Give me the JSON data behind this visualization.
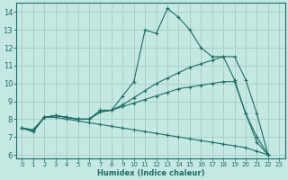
{
  "xlabel": "Humidex (Indice chaleur)",
  "ylabel": "",
  "bg_color": "#c6e8e2",
  "grid_color": "#a8d0c8",
  "line_color": "#1a6e68",
  "xlim": [
    -0.5,
    23.5
  ],
  "ylim": [
    5.8,
    14.5
  ],
  "yticks": [
    6,
    7,
    8,
    9,
    10,
    11,
    12,
    13,
    14
  ],
  "xticks": [
    0,
    1,
    2,
    3,
    4,
    5,
    6,
    7,
    8,
    9,
    10,
    11,
    12,
    13,
    14,
    15,
    16,
    17,
    18,
    19,
    20,
    21,
    22,
    23
  ],
  "lines": [
    {
      "x": [
        0,
        1,
        2,
        3,
        4,
        5,
        6,
        7,
        8,
        9,
        10,
        11,
        12,
        13,
        14,
        15,
        16,
        17,
        18,
        19,
        20,
        21,
        22
      ],
      "y": [
        7.5,
        7.3,
        8.1,
        8.2,
        8.1,
        8.0,
        8.0,
        8.5,
        8.5,
        9.3,
        10.1,
        13.0,
        12.8,
        14.2,
        13.7,
        13.0,
        12.0,
        11.5,
        11.5,
        10.2,
        8.3,
        6.7,
        6.0
      ]
    },
    {
      "x": [
        0,
        1,
        2,
        3,
        4,
        5,
        6,
        7,
        8,
        9,
        10,
        11,
        12,
        13,
        14,
        15,
        16,
        17,
        18,
        19,
        20,
        21,
        22
      ],
      "y": [
        7.5,
        7.4,
        8.1,
        8.2,
        8.1,
        8.0,
        8.0,
        8.4,
        8.5,
        8.8,
        9.2,
        9.6,
        10.0,
        10.3,
        10.6,
        10.9,
        11.1,
        11.3,
        11.5,
        11.5,
        10.2,
        8.3,
        6.0
      ]
    },
    {
      "x": [
        0,
        1,
        2,
        3,
        4,
        5,
        6,
        7,
        8,
        9,
        10,
        11,
        12,
        13,
        14,
        15,
        16,
        17,
        18,
        19,
        20,
        21,
        22
      ],
      "y": [
        7.5,
        7.4,
        8.1,
        8.2,
        8.1,
        8.0,
        8.0,
        8.4,
        8.5,
        8.7,
        8.9,
        9.1,
        9.3,
        9.5,
        9.7,
        9.8,
        9.9,
        10.0,
        10.1,
        10.1,
        8.3,
        7.0,
        6.0
      ]
    },
    {
      "x": [
        0,
        1,
        2,
        3,
        4,
        5,
        6,
        7,
        8,
        9,
        10,
        11,
        12,
        13,
        14,
        15,
        16,
        17,
        18,
        19,
        20,
        21,
        22
      ],
      "y": [
        7.5,
        7.3,
        8.1,
        8.1,
        8.0,
        7.9,
        7.8,
        7.7,
        7.6,
        7.5,
        7.4,
        7.3,
        7.2,
        7.1,
        7.0,
        6.9,
        6.8,
        6.7,
        6.6,
        6.5,
        6.4,
        6.2,
        6.0
      ]
    }
  ]
}
